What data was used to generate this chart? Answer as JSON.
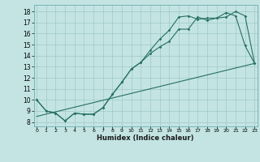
{
  "xlabel": "Humidex (Indice chaleur)",
  "bg_color": "#c4e4e4",
  "line_color": "#267060",
  "x_ticks": [
    0,
    1,
    2,
    3,
    4,
    5,
    6,
    7,
    8,
    9,
    10,
    11,
    12,
    13,
    14,
    15,
    16,
    17,
    18,
    19,
    20,
    21,
    22,
    23
  ],
  "y_ticks": [
    8,
    9,
    10,
    11,
    12,
    13,
    14,
    15,
    16,
    17,
    18
  ],
  "xlim": [
    -0.3,
    23.3
  ],
  "ylim": [
    7.6,
    18.6
  ],
  "line1_x": [
    0,
    1,
    2,
    3,
    4,
    5,
    6,
    7,
    8,
    9,
    10,
    11,
    12,
    13,
    14,
    15,
    16,
    17,
    18,
    19,
    20,
    21,
    22,
    23
  ],
  "line1_y": [
    10.0,
    9.0,
    8.8,
    8.1,
    8.8,
    8.7,
    8.7,
    9.3,
    10.5,
    11.6,
    12.8,
    13.4,
    14.2,
    14.8,
    15.3,
    16.4,
    16.4,
    17.5,
    17.2,
    17.4,
    17.5,
    18.0,
    17.6,
    13.3
  ],
  "line2_x": [
    0,
    1,
    2,
    3,
    4,
    5,
    6,
    7,
    8,
    9,
    10,
    11,
    12,
    13,
    14,
    15,
    16,
    17,
    18,
    19,
    20,
    21,
    22,
    23
  ],
  "line2_y": [
    10.0,
    9.0,
    8.8,
    8.1,
    8.8,
    8.7,
    8.7,
    9.3,
    10.5,
    11.6,
    12.8,
    13.4,
    14.5,
    15.5,
    16.3,
    17.5,
    17.6,
    17.3,
    17.4,
    17.4,
    17.9,
    17.6,
    14.9,
    13.3
  ],
  "line3_x": [
    0,
    23
  ],
  "line3_y": [
    8.5,
    13.3
  ]
}
